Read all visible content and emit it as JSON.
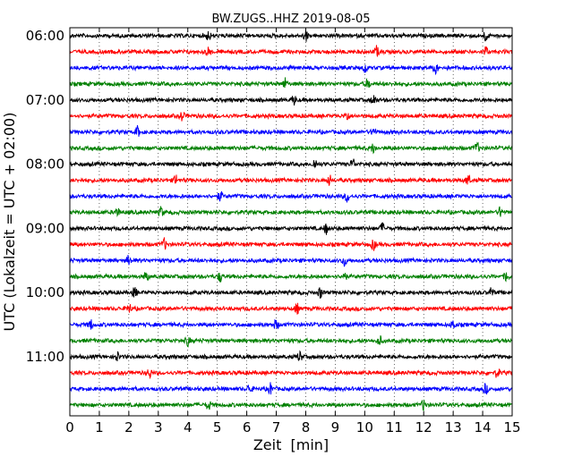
{
  "chart_data": {
    "type": "line",
    "title": "BW.ZUGS..HHZ 2019-08-05",
    "xlabel": "Zeit  [min]",
    "ylabel": "UTC (Lokalzeit = UTC + 02:00)",
    "xlim": [
      0,
      15
    ],
    "x_ticks": [
      0,
      1,
      2,
      3,
      4,
      5,
      6,
      7,
      8,
      9,
      10,
      11,
      12,
      13,
      14,
      15
    ],
    "y_tick_labels": [
      "06:00",
      "07:00",
      "08:00",
      "09:00",
      "10:00",
      "11:00"
    ],
    "grid": "vertical-dotted",
    "series": [
      {
        "color": "#000000",
        "events": [
          4.7,
          8.0,
          14.1
        ]
      },
      {
        "color": "#ff0000",
        "events": [
          4.7,
          10.4,
          14.1
        ]
      },
      {
        "color": "#0000ff",
        "events": [
          10.0,
          12.4
        ]
      },
      {
        "color": "#008000",
        "events": [
          7.3,
          10.1
        ]
      },
      {
        "color": "#000000",
        "events": [
          7.6,
          10.3
        ]
      },
      {
        "color": "#ff0000",
        "events": [
          3.8,
          9.4
        ]
      },
      {
        "color": "#0000ff",
        "events": [
          2.3,
          10.3
        ]
      },
      {
        "color": "#008000",
        "events": [
          10.3,
          13.8
        ]
      },
      {
        "color": "#000000",
        "events": [
          8.3,
          9.6
        ]
      },
      {
        "color": "#ff0000",
        "events": [
          3.6,
          8.8,
          13.5
        ]
      },
      {
        "color": "#0000ff",
        "events": [
          5.1,
          9.4
        ]
      },
      {
        "color": "#008000",
        "events": [
          1.6,
          3.1,
          14.6
        ]
      },
      {
        "color": "#000000",
        "events": [
          8.7,
          10.6
        ]
      },
      {
        "color": "#ff0000",
        "events": [
          3.2,
          10.3
        ]
      },
      {
        "color": "#0000ff",
        "events": [
          2.0,
          9.3
        ]
      },
      {
        "color": "#008000",
        "events": [
          2.6,
          5.1,
          9.3,
          14.8
        ]
      },
      {
        "color": "#000000",
        "events": [
          2.2,
          8.5,
          14.3
        ]
      },
      {
        "color": "#ff0000",
        "events": [
          2.0,
          7.7
        ]
      },
      {
        "color": "#0000ff",
        "events": [
          0.7,
          7.0,
          13.0
        ]
      },
      {
        "color": "#008000",
        "events": [
          4.0,
          10.5
        ]
      },
      {
        "color": "#000000",
        "events": [
          1.6,
          7.8
        ]
      },
      {
        "color": "#ff0000",
        "events": [
          2.7,
          14.5
        ]
      },
      {
        "color": "#0000ff",
        "events": [
          6.1,
          6.8,
          14.1
        ]
      },
      {
        "color": "#008000",
        "events": [
          4.7,
          12.0
        ]
      }
    ]
  }
}
